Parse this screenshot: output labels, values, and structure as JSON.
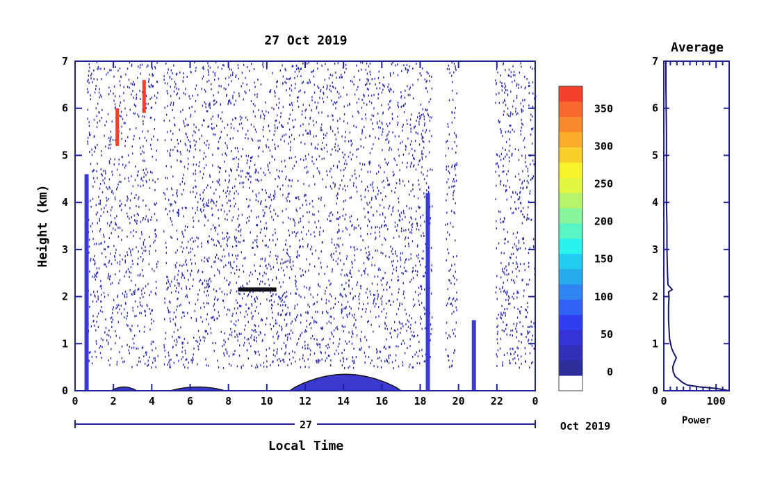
{
  "chart_data": [
    {
      "type": "heatmap",
      "title": "27 Oct 2019",
      "xlabel": "Local Time",
      "ylabel": "Height (km)",
      "xlim": [
        0,
        24
      ],
      "ylim": [
        0,
        7
      ],
      "x_ticks": [
        "0",
        "2",
        "4",
        "6",
        "8",
        "10",
        "12",
        "14",
        "16",
        "18",
        "20",
        "22",
        "0"
      ],
      "y_ticks": [
        "0",
        "1",
        "2",
        "3",
        "4",
        "5",
        "6",
        "7"
      ],
      "date_axis": {
        "day_label": "27",
        "month_label": "Oct 2019"
      },
      "colorbar": {
        "ticks": [
          "0",
          "50",
          "100",
          "150",
          "200",
          "250",
          "300",
          "350"
        ],
        "range": [
          -25,
          380
        ],
        "colors": [
          "#ffffff",
          "#2e2e9a",
          "#3030b8",
          "#3333d6",
          "#2f3ff0",
          "#2f62f5",
          "#2f84f2",
          "#27a9ee",
          "#22cbf0",
          "#2af2ec",
          "#5af5c4",
          "#86f59c",
          "#b6f46c",
          "#e2f740",
          "#f7f22a",
          "#f9d02b",
          "#f9ad2b",
          "#f98a2b",
          "#f8672b",
          "#f5402b"
        ]
      },
      "features": [
        {
          "kind": "ground_layer",
          "x_start": 11.2,
          "x_end": 17.0,
          "height_peak_km": 0.35
        },
        {
          "kind": "ground_layer",
          "x_start": 1.9,
          "x_end": 3.2,
          "height_peak_km": 0.08
        },
        {
          "kind": "ground_layer",
          "x_start": 5.0,
          "x_end": 7.8,
          "height_peak_km": 0.08
        },
        {
          "kind": "column",
          "x": 0.6,
          "height_top_km": 4.6
        },
        {
          "kind": "column",
          "x": 18.4,
          "height_top_km": 4.2
        },
        {
          "kind": "column",
          "x": 20.8,
          "height_top_km": 1.5
        },
        {
          "kind": "layer",
          "x_start": 8.5,
          "x_end": 10.5,
          "height_km": 2.15
        },
        {
          "kind": "streak",
          "x": 2.2,
          "height_start_km": 5.2,
          "height_end_km": 6.0,
          "value": 360
        },
        {
          "kind": "streak",
          "x": 3.6,
          "height_start_km": 5.9,
          "height_end_km": 6.6,
          "value": 360
        }
      ]
    },
    {
      "type": "line",
      "title": "Average",
      "xlabel": "Power",
      "ylabel": "",
      "xlim": [
        0,
        125
      ],
      "ylim": [
        0,
        7
      ],
      "x_ticks": [
        "0",
        "100"
      ],
      "y_ticks": [
        "0",
        "1",
        "2",
        "3",
        "4",
        "5",
        "6",
        "7"
      ],
      "series": [
        {
          "x": [
            125,
            100,
            70,
            45,
            35,
            28,
            22,
            18,
            17,
            20,
            24,
            19,
            15,
            13,
            11,
            10,
            9,
            9,
            10,
            9,
            16,
            8,
            7,
            6,
            6,
            5,
            5,
            5,
            4,
            4
          ],
          "y": [
            0.0,
            0.05,
            0.08,
            0.12,
            0.18,
            0.25,
            0.3,
            0.4,
            0.5,
            0.6,
            0.7,
            0.8,
            0.9,
            1.0,
            1.1,
            1.3,
            1.5,
            1.8,
            2.0,
            2.1,
            2.15,
            2.25,
            2.5,
            3.0,
            3.5,
            4.0,
            5.0,
            5.5,
            6.5,
            7.0
          ]
        }
      ]
    }
  ]
}
